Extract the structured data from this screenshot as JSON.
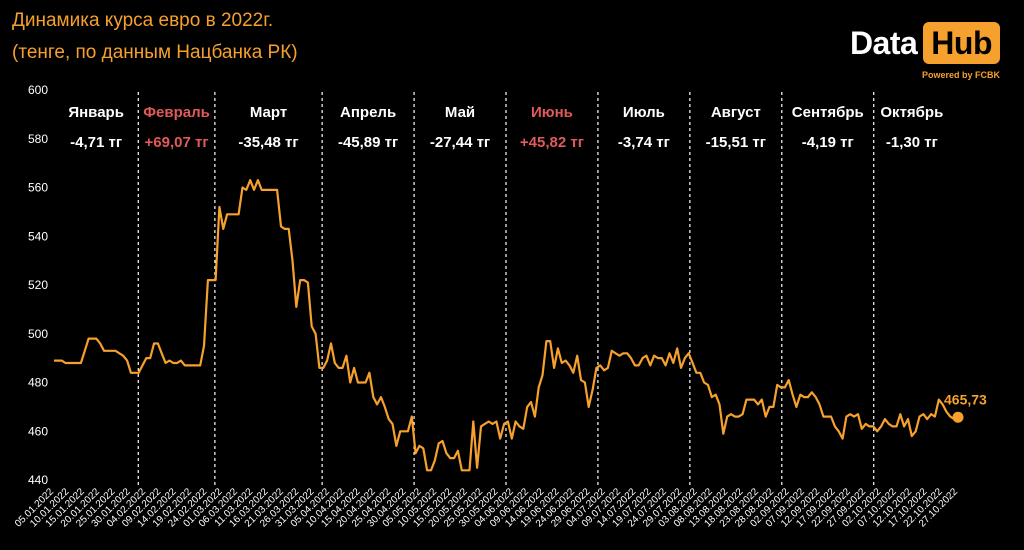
{
  "header": {
    "title_line1": "Динамика курса евро в 2022г.",
    "title_line2": "(тенге, по данным Нацбанка РК)"
  },
  "logo": {
    "data_text": "Data",
    "hub_text": "Hub",
    "powered_text": "Powered by FCBK"
  },
  "colors": {
    "background": "#000000",
    "line": "#f6a02d",
    "axis_text": "#ffffff",
    "positive_month": "#e05a5a",
    "grid": "#ffffff"
  },
  "chart_data": {
    "type": "line",
    "title": "Динамика курса евро в 2022г.",
    "subtitle": "(тенге, по данным Нацбанка РК)",
    "ylim": [
      440,
      600
    ],
    "y_ticks": [
      440,
      460,
      480,
      500,
      520,
      540,
      560,
      580,
      600
    ],
    "grid": "vertical dashed month separators",
    "x_tick_labels": [
      "05.01.2022",
      "10.01.2022",
      "15.01.2022",
      "20.01.2022",
      "25.01.2022",
      "30.01.2022",
      "04.02.2022",
      "09.02.2022",
      "14.02.2022",
      "19.02.2022",
      "24.02.2022",
      "01.03.2022",
      "06.03.2022",
      "11.03.2022",
      "16.03.2022",
      "21.03.2022",
      "26.03.2022",
      "31.03.2022",
      "05.04.2022",
      "10.04.2022",
      "15.04.2022",
      "20.04.2022",
      "25.04.2022",
      "30.04.2022",
      "05.05.2022",
      "10.05.2022",
      "15.05.2022",
      "20.05.2022",
      "25.05.2022",
      "30.05.2022",
      "04.06.2022",
      "09.06.2022",
      "14.06.2022",
      "19.06.2022",
      "24.06.2022",
      "29.06.2022",
      "04.07.2022",
      "09.07.2022",
      "14.07.2022",
      "19.07.2022",
      "24.07.2022",
      "29.07.2022",
      "03.08.2022",
      "08.08.2022",
      "13.08.2022",
      "18.08.2022",
      "23.08.2022",
      "28.08.2022",
      "02.09.2022",
      "07.09.2022",
      "12.09.2022",
      "17.09.2022",
      "22.09.2022",
      "27.09.2022",
      "02.10.2022",
      "07.10.2022",
      "12.10.2022",
      "17.10.2022",
      "22.10.2022",
      "27.10.2022"
    ],
    "months": [
      {
        "name": "Январь",
        "change": "-4,71 тг",
        "positive": false
      },
      {
        "name": "Февраль",
        "change": "+69,07 тг",
        "positive": true
      },
      {
        "name": "Март",
        "change": "-35,48 тг",
        "positive": false
      },
      {
        "name": "Апрель",
        "change": "-45,89 тг",
        "positive": false
      },
      {
        "name": "Май",
        "change": "-27,44 тг",
        "positive": false
      },
      {
        "name": "Июнь",
        "change": "+45,82 тг",
        "positive": true
      },
      {
        "name": "Июль",
        "change": "-3,74 тг",
        "positive": false
      },
      {
        "name": "Август",
        "change": "-15,51 тг",
        "positive": false
      },
      {
        "name": "Сентябрь",
        "change": "-4,19 тг",
        "positive": false
      },
      {
        "name": "Октябрь",
        "change": "-1,30 тг",
        "positive": false
      }
    ],
    "last_value_label": "465,73",
    "series": [
      {
        "values": [
          489,
          489,
          489,
          488,
          488,
          488,
          488,
          488,
          493,
          498,
          498,
          498,
          496,
          493,
          493,
          493,
          493,
          492,
          491,
          489,
          484,
          484,
          484,
          487,
          490,
          490,
          496,
          496,
          492,
          488,
          489,
          488,
          488,
          489,
          487,
          487,
          487,
          487,
          487,
          495,
          522,
          522,
          522,
          552,
          543,
          549,
          549,
          549,
          549,
          560,
          559,
          563,
          559,
          563,
          559,
          559,
          559,
          559,
          559,
          544,
          543,
          543,
          530,
          511,
          522,
          522,
          521,
          503,
          500,
          486,
          486,
          489,
          496,
          488,
          486,
          486,
          491,
          480,
          486,
          480,
          480,
          480,
          484,
          474,
          471,
          474,
          470,
          465,
          463,
          454,
          460,
          460,
          460,
          466,
          451,
          454,
          453,
          444,
          444,
          448,
          455,
          456,
          451,
          449,
          449,
          452,
          444,
          444,
          444,
          464,
          445,
          462,
          463,
          464,
          463,
          464,
          457,
          463,
          464,
          457,
          464,
          462,
          461,
          470,
          472,
          466,
          478,
          483,
          497,
          497,
          486,
          494,
          488,
          489,
          487,
          484,
          491,
          481,
          480,
          470,
          477,
          486,
          487,
          485,
          486,
          493,
          492,
          491,
          492,
          492,
          490,
          487,
          487,
          490,
          491,
          487,
          491,
          490,
          490,
          487,
          492,
          488,
          494,
          486,
          490,
          492,
          488,
          484,
          484,
          480,
          479,
          474,
          475,
          471,
          459,
          466,
          467,
          466,
          466,
          467,
          473,
          473,
          473,
          471,
          473,
          466,
          470,
          470,
          479,
          478,
          478,
          481,
          475,
          470,
          475,
          474,
          474,
          476,
          474,
          471,
          466,
          466,
          466,
          462,
          460,
          457,
          466,
          467,
          466,
          467,
          461,
          463,
          462,
          462,
          460,
          462,
          465,
          463,
          462,
          462,
          467,
          462,
          465,
          458,
          460,
          466,
          467,
          465,
          467,
          466,
          473,
          471,
          468,
          466,
          465,
          465.73
        ]
      }
    ]
  }
}
